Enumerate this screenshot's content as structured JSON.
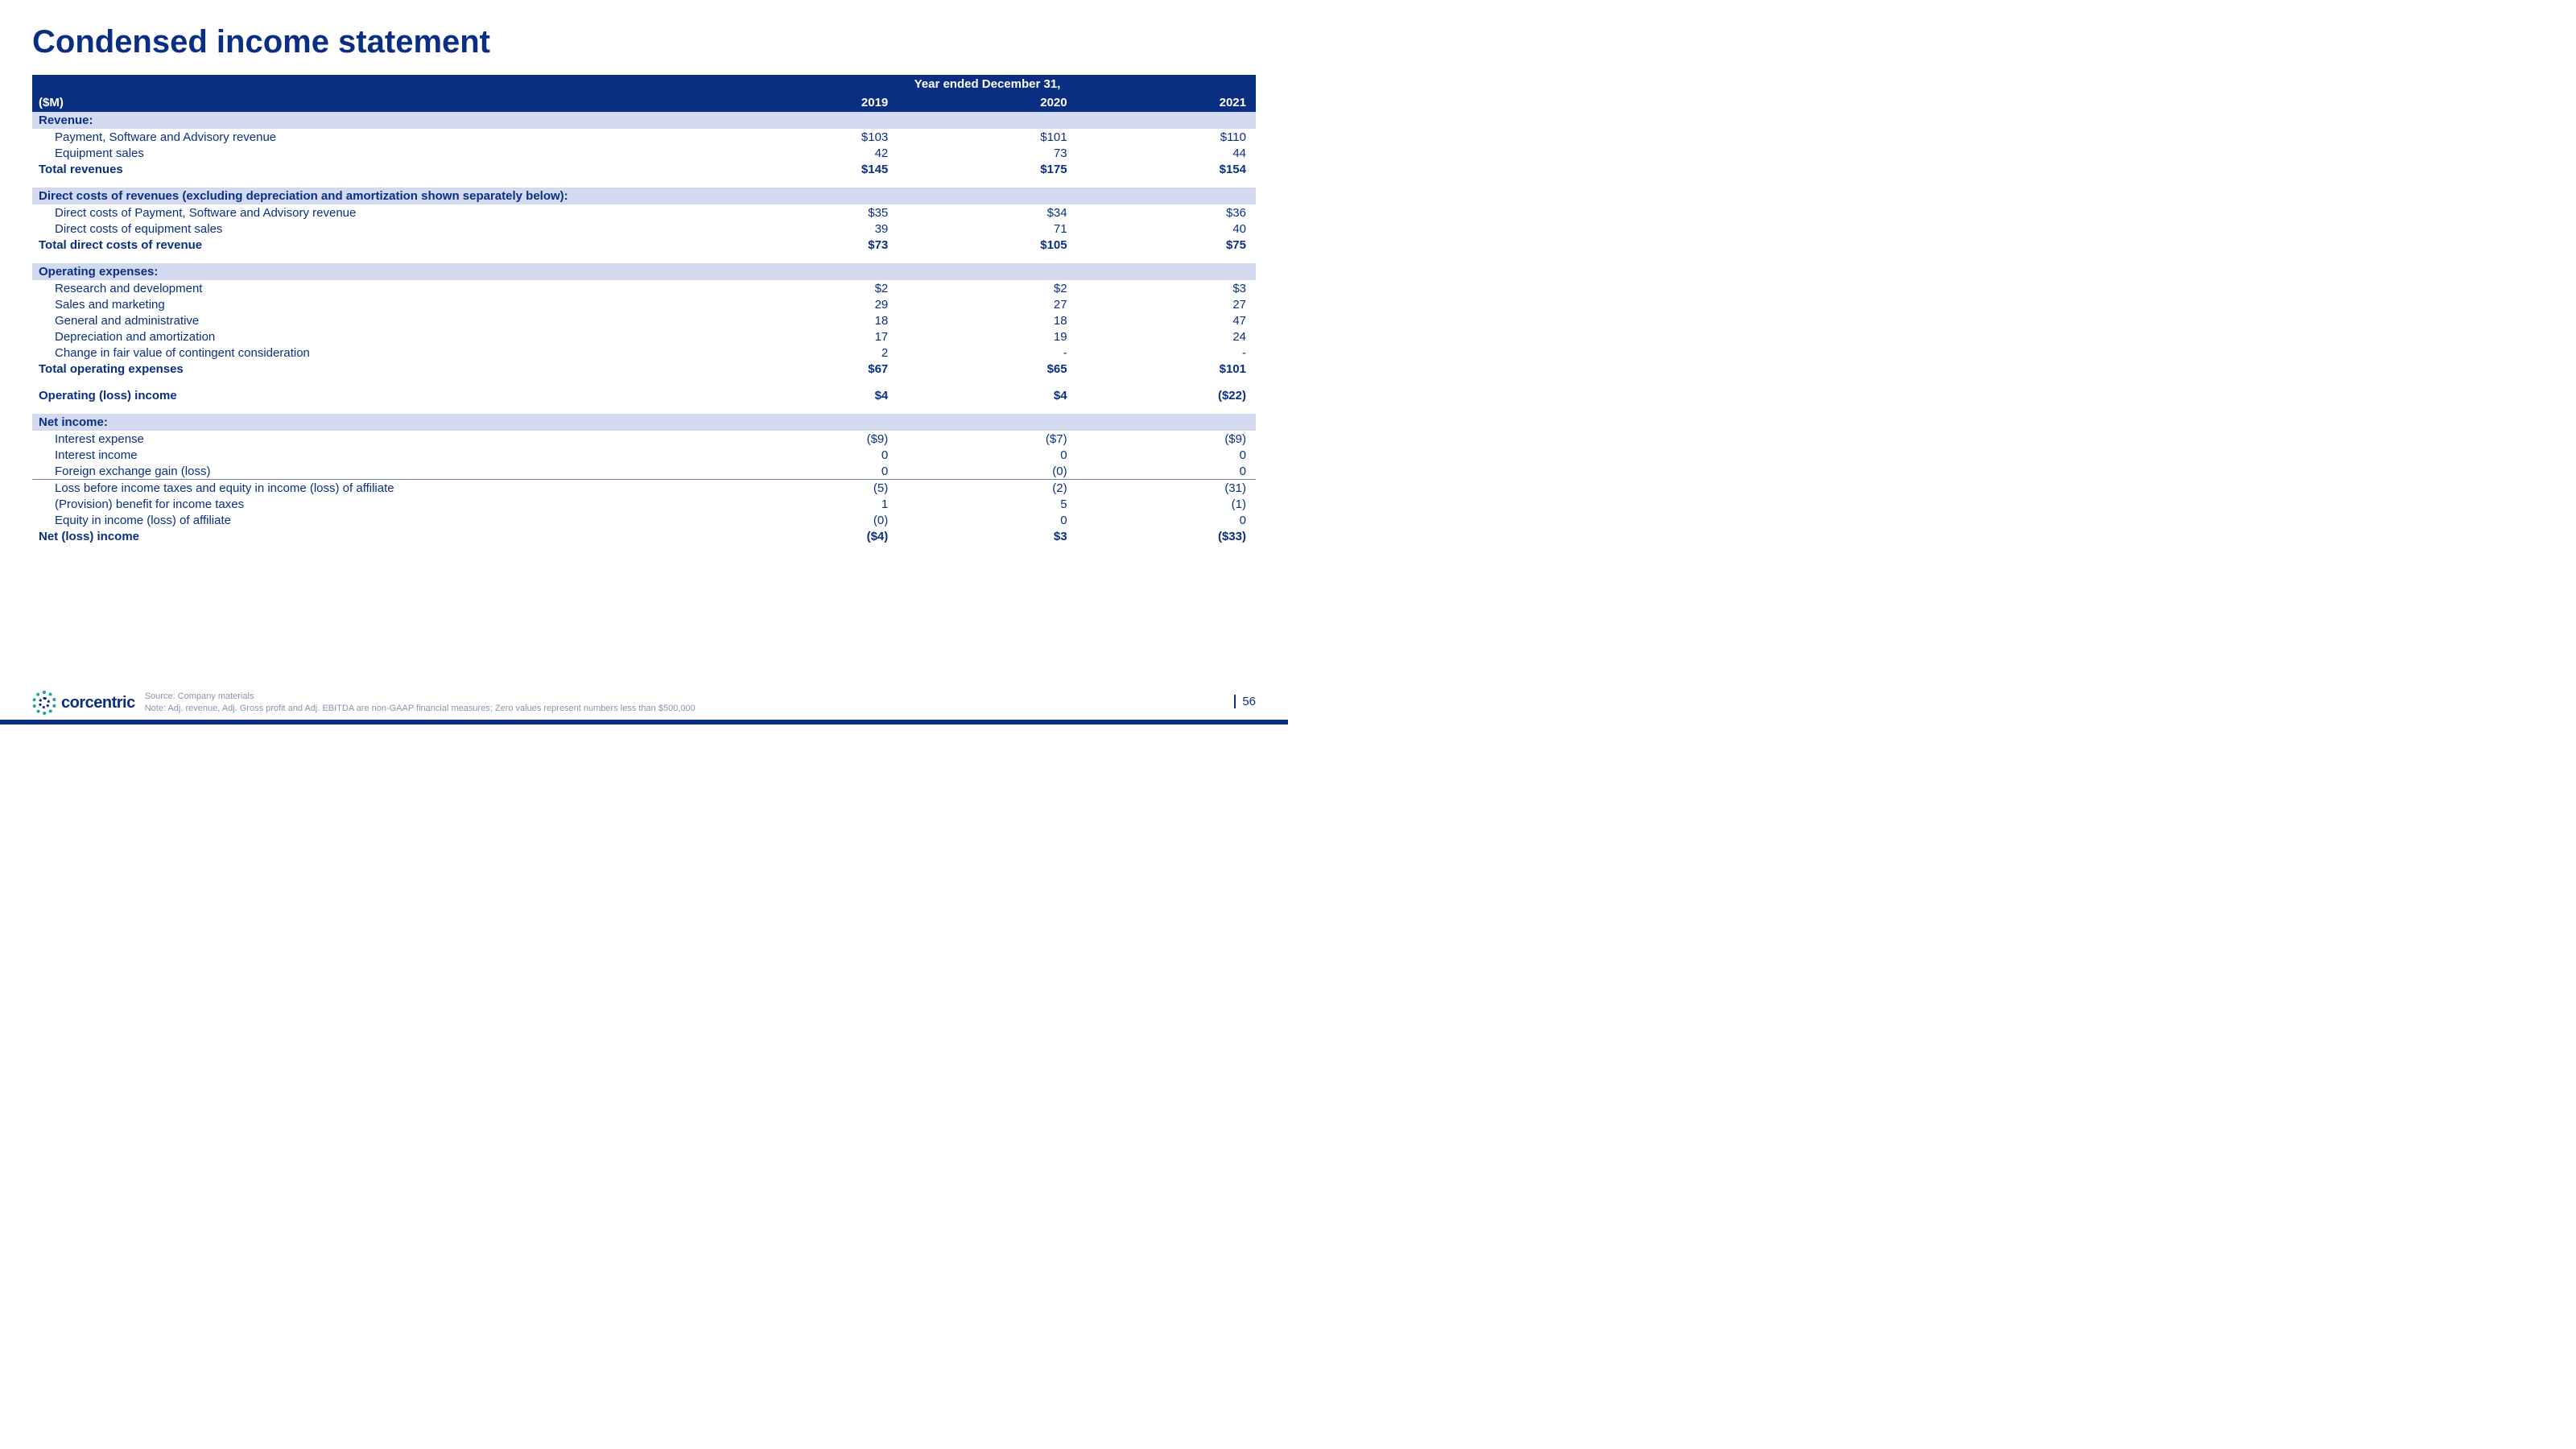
{
  "title": "Condensed income statement",
  "unit_label": "($M)",
  "period_label": "Year ended December 31,",
  "years": [
    "2019",
    "2020",
    "2021"
  ],
  "sections": {
    "revenue": {
      "header": "Revenue:",
      "rows": [
        {
          "label": "Payment, Software and Advisory revenue",
          "vals": [
            "$103",
            "$101",
            "$110"
          ]
        },
        {
          "label": "Equipment sales",
          "vals": [
            "42",
            "73",
            "44"
          ]
        }
      ],
      "total": {
        "label": "Total revenues",
        "vals": [
          "$145",
          "$175",
          "$154"
        ]
      }
    },
    "direct_costs": {
      "header": "Direct costs of revenues (excluding depreciation and amortization shown separately below):",
      "rows": [
        {
          "label": "Direct costs of Payment, Software and Advisory revenue",
          "vals": [
            "$35",
            "$34",
            "$36"
          ]
        },
        {
          "label": "Direct costs of equipment sales",
          "vals": [
            "39",
            "71",
            "40"
          ]
        }
      ],
      "total": {
        "label": "Total direct costs of revenue",
        "vals": [
          "$73",
          "$105",
          "$75"
        ]
      }
    },
    "opex": {
      "header": "Operating expenses:",
      "rows": [
        {
          "label": "Research and development",
          "vals": [
            "$2",
            "$2",
            "$3"
          ]
        },
        {
          "label": "Sales and marketing",
          "vals": [
            "29",
            "27",
            "27"
          ]
        },
        {
          "label": "General and administrative",
          "vals": [
            "18",
            "18",
            "47"
          ]
        },
        {
          "label": "Depreciation and amortization",
          "vals": [
            "17",
            "19",
            "24"
          ]
        },
        {
          "label": "Change in fair value of contingent consideration",
          "vals": [
            "2",
            "-",
            "-"
          ]
        }
      ],
      "total": {
        "label": "Total operating expenses",
        "vals": [
          "$67",
          "$65",
          "$101"
        ]
      }
    },
    "op_income": {
      "label": "Operating (loss) income",
      "vals": [
        "$4",
        "$4",
        "($22)"
      ]
    },
    "net_income": {
      "header": "Net income:",
      "rows": [
        {
          "label": "Interest expense",
          "vals": [
            "($9)",
            "($7)",
            "($9)"
          ]
        },
        {
          "label": "Interest income",
          "vals": [
            "0",
            "0",
            "0"
          ]
        },
        {
          "label": "Foreign exchange gain (loss)",
          "vals": [
            "0",
            "(0)",
            "0"
          ]
        }
      ],
      "rows2": [
        {
          "label": "Loss before income taxes and equity in income (loss) of affiliate",
          "vals": [
            "(5)",
            "(2)",
            "(31)"
          ]
        },
        {
          "label": "(Provision) benefit for income taxes",
          "vals": [
            "1",
            "5",
            "(1)"
          ]
        },
        {
          "label": "Equity in income (loss) of affiliate",
          "vals": [
            "(0)",
            "0",
            "0"
          ]
        }
      ],
      "total": {
        "label": "Net (loss) income",
        "vals": [
          "($4)",
          "$3",
          "($33)"
        ]
      }
    }
  },
  "footer": {
    "logo_text": "corcentric",
    "source": "Source: Company materials",
    "note": "Note: Adj. revenue, Adj. Gross profit and Adj. EBITDA are non-GAAP financial measures; Zero values represent numbers less than $500,000",
    "page": "56"
  },
  "colors": {
    "brand_navy": "#0a2f82",
    "section_bg": "#d3daf0"
  }
}
